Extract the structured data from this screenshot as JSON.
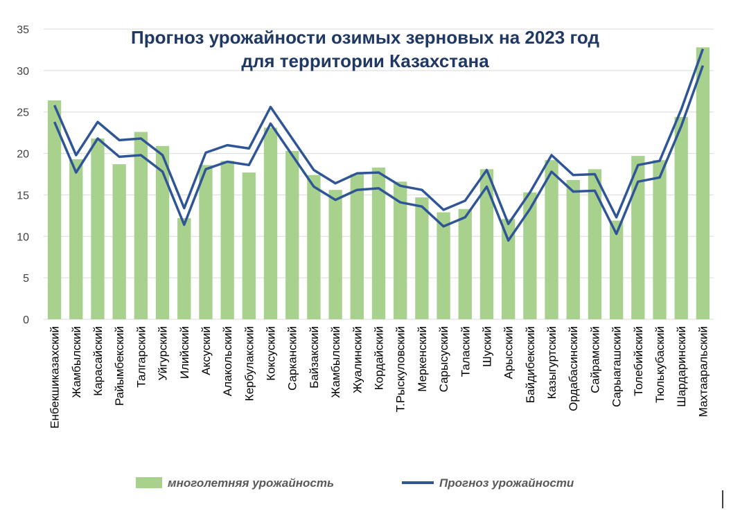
{
  "chart_data": {
    "type": "bar",
    "title_line1": "Прогноз урожайности озимых зерновых на 2023 год",
    "title_line2": "для территории Казахстана",
    "xlabel": "",
    "ylabel": "",
    "ylim": [
      0,
      35
    ],
    "yticks": [
      0,
      5,
      10,
      15,
      20,
      25,
      30,
      35
    ],
    "grid": true,
    "legend_position": "bottom",
    "categories": [
      "Енбекшиказахский",
      "Жамбылский",
      "Карасайский",
      "Райымбекский",
      "Талгарский",
      "Уйгурский",
      "Илийский",
      "Аксуский",
      "Алакольский",
      "Кербулакский",
      "Коксуский",
      "Сарканский",
      "Байзакский",
      "Жамбылский",
      "Жуалинский",
      "Кордайский",
      "Т.Рыскуловский",
      "Меркенский",
      "Сарысуский",
      "Талаский",
      "Шуский",
      "Арысский",
      "Байдибекский",
      "Казыгуртский",
      "Ордабасинский",
      "Сайрамский",
      "Сарыагашский",
      "Толебийский",
      "Тюлькубаский",
      "Шардаринский",
      "Махтааральский"
    ],
    "series": [
      {
        "name": "многолетняя урожайность",
        "type": "bar",
        "color": "#a9d18e",
        "values": [
          26.4,
          19.3,
          21.8,
          18.7,
          22.6,
          20.9,
          12.2,
          18.6,
          19.1,
          17.7,
          23.1,
          20.3,
          17.4,
          15.6,
          17.5,
          18.3,
          16.6,
          14.7,
          12.9,
          13.3,
          18.1,
          12.1,
          15.3,
          19.2,
          16.8,
          18.1,
          11.9,
          19.7,
          19.2,
          24.4,
          32.8
        ]
      },
      {
        "name": "Прогноз урожайности",
        "type": "band-line",
        "color": "#2f5597",
        "upper": [
          25.8,
          19.8,
          23.8,
          21.6,
          21.8,
          19.8,
          13.4,
          20.1,
          21.0,
          20.6,
          25.6,
          21.8,
          18.0,
          16.4,
          17.6,
          17.7,
          16.1,
          15.6,
          13.2,
          14.3,
          18.0,
          11.5,
          15.3,
          19.8,
          17.4,
          17.5,
          12.3,
          18.6,
          19.1,
          25.3,
          32.6
        ],
        "lower": [
          23.8,
          17.7,
          21.8,
          19.6,
          19.8,
          17.8,
          11.4,
          18.1,
          19.0,
          18.6,
          23.6,
          19.8,
          16.0,
          14.4,
          15.6,
          15.8,
          14.1,
          13.6,
          11.2,
          12.3,
          16.0,
          9.5,
          13.3,
          17.8,
          15.4,
          15.5,
          10.3,
          16.6,
          17.1,
          23.3,
          30.6
        ]
      }
    ]
  }
}
